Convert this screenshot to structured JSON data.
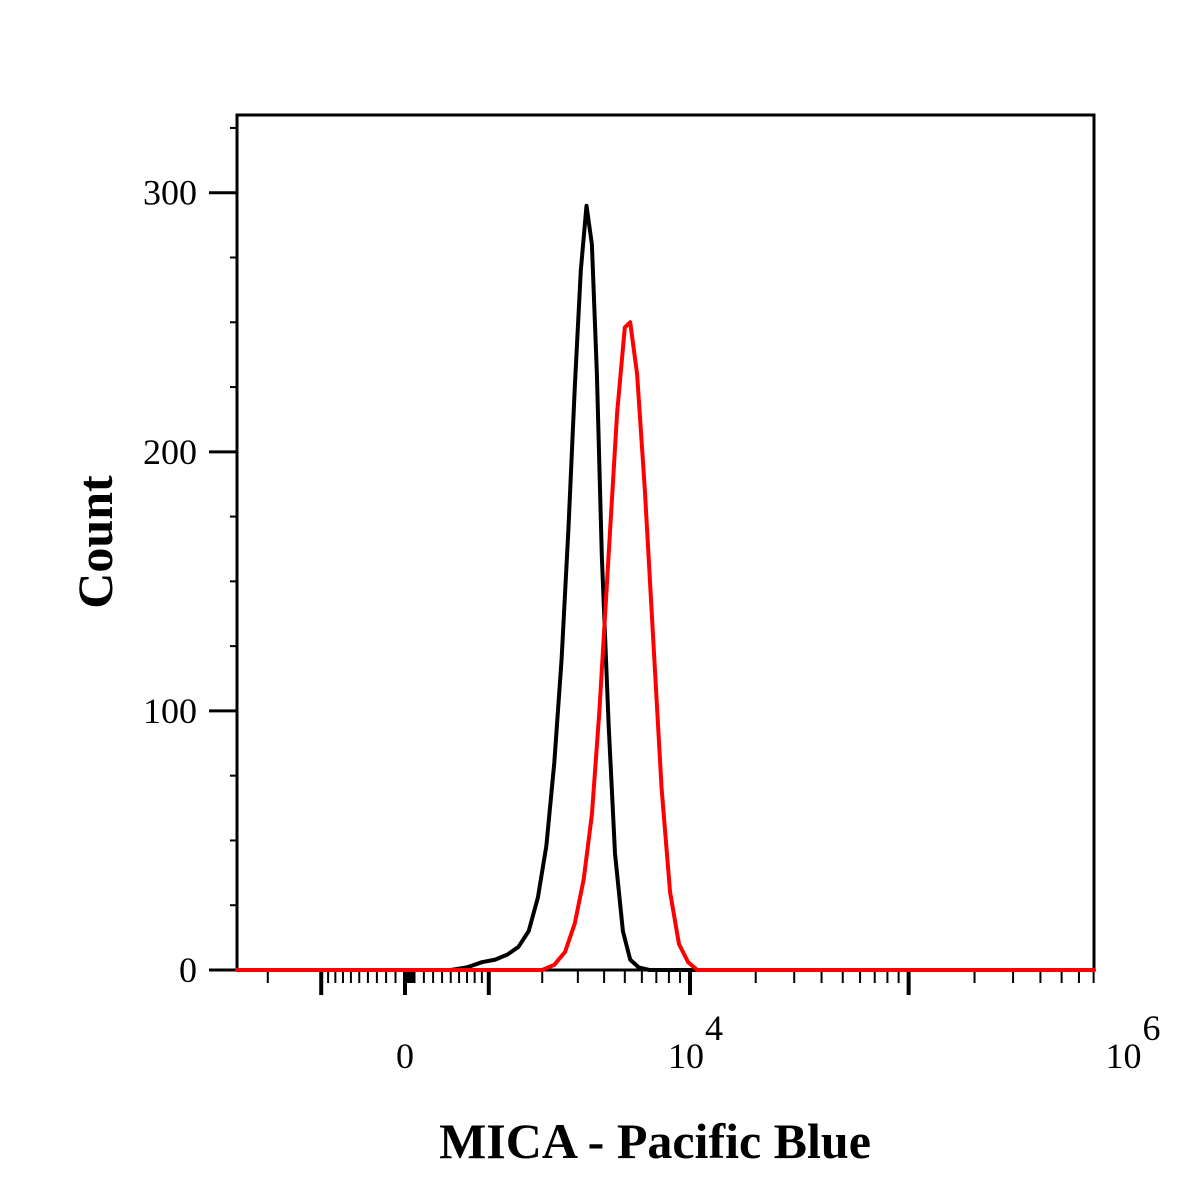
{
  "chart_data": {
    "type": "line",
    "chart_kind": "flow-cytometry-histogram",
    "xlabel": "MICA - Pacific Blue",
    "ylabel": "Count",
    "x_scale": "biexponential",
    "ylim": [
      0,
      330
    ],
    "y_ticks": [
      {
        "value": 0,
        "label": "0"
      },
      {
        "value": 100,
        "label": "100"
      },
      {
        "value": 200,
        "label": "200"
      },
      {
        "value": 300,
        "label": "300"
      }
    ],
    "x_ticks": [
      {
        "value": 0,
        "label": "0",
        "exp": ""
      },
      {
        "value": 10000,
        "label": "10",
        "exp": "4"
      },
      {
        "value": 1000000,
        "label": "10",
        "exp": "6"
      }
    ],
    "grid": false,
    "legend": "none",
    "series": [
      {
        "color": "#000000",
        "points": [
          [
            -3000,
            0
          ],
          [
            500,
            0
          ],
          [
            700,
            1
          ],
          [
            900,
            3
          ],
          [
            1100,
            4
          ],
          [
            1300,
            6
          ],
          [
            1500,
            9
          ],
          [
            1700,
            15
          ],
          [
            1900,
            28
          ],
          [
            2100,
            48
          ],
          [
            2300,
            80
          ],
          [
            2500,
            120
          ],
          [
            2700,
            170
          ],
          [
            2900,
            225
          ],
          [
            3100,
            270
          ],
          [
            3300,
            295
          ],
          [
            3500,
            280
          ],
          [
            3700,
            230
          ],
          [
            3900,
            160
          ],
          [
            4200,
            95
          ],
          [
            4500,
            45
          ],
          [
            4900,
            15
          ],
          [
            5300,
            4
          ],
          [
            5800,
            1
          ],
          [
            6500,
            0
          ],
          [
            5000000,
            0
          ]
        ]
      },
      {
        "color": "#ff0000",
        "points": [
          [
            -3000,
            0
          ],
          [
            2000,
            0
          ],
          [
            2300,
            2
          ],
          [
            2600,
            7
          ],
          [
            2900,
            18
          ],
          [
            3200,
            35
          ],
          [
            3500,
            60
          ],
          [
            3800,
            100
          ],
          [
            4200,
            160
          ],
          [
            4600,
            215
          ],
          [
            5000,
            248
          ],
          [
            5300,
            250
          ],
          [
            5700,
            230
          ],
          [
            6200,
            185
          ],
          [
            6800,
            125
          ],
          [
            7400,
            70
          ],
          [
            8100,
            30
          ],
          [
            8900,
            10
          ],
          [
            9800,
            3
          ],
          [
            10800,
            0
          ],
          [
            5000000,
            0
          ]
        ]
      }
    ]
  }
}
